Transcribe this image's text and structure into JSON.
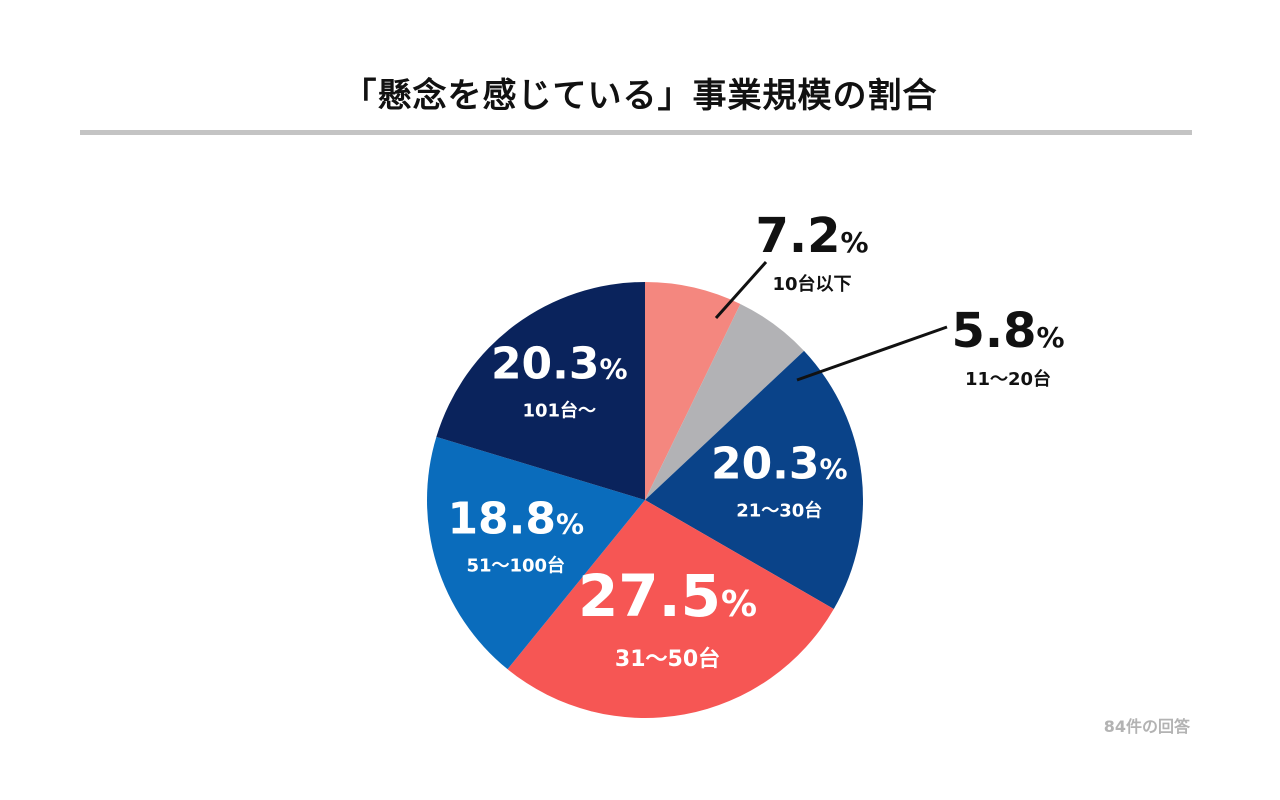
{
  "chart_data": {
    "type": "pie",
    "title": "「懸念を感じている」事業規模の割合",
    "unit": "%",
    "start_angle_deg": 0,
    "direction": "clockwise",
    "slices": [
      {
        "label": "10台以下",
        "value": 7.2,
        "value_text": "7.2",
        "color": "#f4877f",
        "label_placement": "outside"
      },
      {
        "label": "11〜20台",
        "value": 5.8,
        "value_text": "5.8",
        "color": "#b2b2b5",
        "label_placement": "outside"
      },
      {
        "label": "21〜30台",
        "value": 20.3,
        "value_text": "20.3",
        "color": "#0a4389",
        "label_placement": "inside"
      },
      {
        "label": "31〜50台",
        "value": 27.5,
        "value_text": "27.5",
        "color": "#f65654",
        "label_placement": "inside"
      },
      {
        "label": "51〜100台",
        "value": 18.8,
        "value_text": "18.8",
        "color": "#0a6cbc",
        "label_placement": "inside"
      },
      {
        "label": "101台〜",
        "value": 20.3,
        "value_text": "20.3",
        "color": "#0a235c",
        "label_placement": "inside"
      }
    ],
    "percent_symbol": "%",
    "note": "84件の回答"
  }
}
